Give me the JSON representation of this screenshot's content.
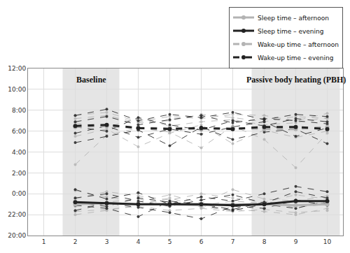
{
  "chart_data": {
    "type": "line",
    "x": [
      2,
      3,
      4,
      5,
      6,
      7,
      8,
      9,
      10
    ],
    "xlim": [
      0.5,
      10.5
    ],
    "xticks": [
      1,
      2,
      3,
      4,
      5,
      6,
      7,
      8,
      9,
      10
    ],
    "ylim": [
      20,
      36
    ],
    "yticks": [
      {
        "value": 20,
        "label": "20:00"
      },
      {
        "value": 22,
        "label": "22:00"
      },
      {
        "value": 24,
        "label": "0:00"
      },
      {
        "value": 26,
        "label": "2:00"
      },
      {
        "value": 28,
        "label": "4:00"
      },
      {
        "value": 30,
        "label": "6:00"
      },
      {
        "value": 32,
        "label": "8:00"
      },
      {
        "value": 34,
        "label": "10:00"
      },
      {
        "value": 36,
        "label": "12:00"
      }
    ],
    "grid": true,
    "legend": "top right",
    "periods": [
      {
        "label": "Baseline",
        "start": 2,
        "end": 3
      },
      {
        "label": "Passive body heating (PBH)",
        "start": 8,
        "end": 10
      }
    ],
    "series": [
      {
        "name": "Sleep time – afternoon",
        "color": "#b3b3b3",
        "line_style": "solid",
        "marker": "circle",
        "values": [
          23.0,
          23.1,
          23.0,
          23.0,
          22.9,
          23.0,
          23.0,
          22.9,
          23.0
        ],
        "participants": [
          [
            22.8,
            23.2,
            23.5,
            23.0,
            22.9,
            23.3,
            23.1,
            22.7,
            23.0
          ],
          [
            22.3,
            22.5,
            22.8,
            22.4,
            22.6,
            22.3,
            22.5,
            22.2,
            22.4
          ],
          [
            23.5,
            24.2,
            23.8,
            23.4,
            24.0,
            23.6,
            23.2,
            23.9,
            23.5
          ],
          [
            22.0,
            22.4,
            22.9,
            23.6,
            22.7,
            22.5,
            22.3,
            22.0,
            22.6
          ],
          [
            24.3,
            23.7,
            23.2,
            23.9,
            23.1,
            24.4,
            23.5,
            23.3,
            23.8
          ]
        ]
      },
      {
        "name": "Sleep time – evening",
        "color": "#222222",
        "line_style": "solid",
        "marker": "circle",
        "values": [
          23.2,
          23.1,
          23.0,
          23.0,
          23.0,
          22.9,
          23.0,
          23.3,
          23.3
        ],
        "participants": [
          [
            22.9,
            22.6,
            21.8,
            23.3,
            23.0,
            22.5,
            23.2,
            22.9,
            23.1
          ],
          [
            23.6,
            24.0,
            23.3,
            22.8,
            23.4,
            23.9,
            23.1,
            24.2,
            23.6
          ],
          [
            22.4,
            23.1,
            22.7,
            22.2,
            21.6,
            22.8,
            22.6,
            23.4,
            22.9
          ],
          [
            24.4,
            23.5,
            24.1,
            23.0,
            23.7,
            23.3,
            24.0,
            24.7,
            24.2
          ],
          [
            23.1,
            22.8,
            23.6,
            23.2,
            22.9,
            22.4,
            23.0,
            22.6,
            23.3
          ]
        ]
      },
      {
        "name": "Wake-up time – afternoon",
        "color": "#b3b3b3",
        "line_style": "dash",
        "marker": "circle",
        "values": [
          30.4,
          30.5,
          30.3,
          30.3,
          30.2,
          30.3,
          30.2,
          30.2,
          30.4
        ],
        "participants": [
          [
            31.2,
            31.5,
            30.8,
            31.0,
            31.6,
            31.3,
            30.9,
            31.4,
            31.2
          ],
          [
            29.5,
            30.2,
            28.5,
            29.8,
            30.6,
            28.8,
            30.1,
            29.4,
            30.0
          ],
          [
            30.8,
            30.4,
            31.2,
            30.5,
            30.9,
            31.1,
            30.6,
            30.8,
            31.3
          ],
          [
            26.8,
            29.6,
            30.3,
            29.9,
            28.4,
            30.5,
            29.2,
            26.5,
            29.8
          ],
          [
            31.5,
            31.8,
            30.9,
            31.4,
            31.2,
            31.6,
            31.5,
            31.0,
            31.7
          ]
        ]
      },
      {
        "name": "Wake-up time – evening",
        "color": "#222222",
        "line_style": "dash",
        "marker": "circle",
        "values": [
          30.5,
          30.6,
          30.3,
          30.2,
          30.3,
          30.2,
          30.4,
          30.4,
          30.2
        ],
        "participants": [
          [
            30.9,
            31.4,
            30.6,
            31.1,
            31.5,
            30.8,
            31.2,
            31.0,
            30.7
          ],
          [
            29.8,
            30.5,
            29.4,
            30.2,
            29.7,
            30.4,
            30.9,
            29.5,
            30.3
          ],
          [
            31.5,
            32.1,
            31.0,
            31.6,
            31.3,
            31.8,
            31.1,
            31.6,
            31.4
          ],
          [
            28.9,
            29.5,
            30.1,
            28.6,
            30.4,
            29.2,
            29.9,
            30.2,
            28.8
          ],
          [
            30.4,
            30.0,
            31.3,
            30.6,
            30.1,
            31.0,
            30.5,
            31.2,
            30.9
          ]
        ]
      }
    ]
  }
}
